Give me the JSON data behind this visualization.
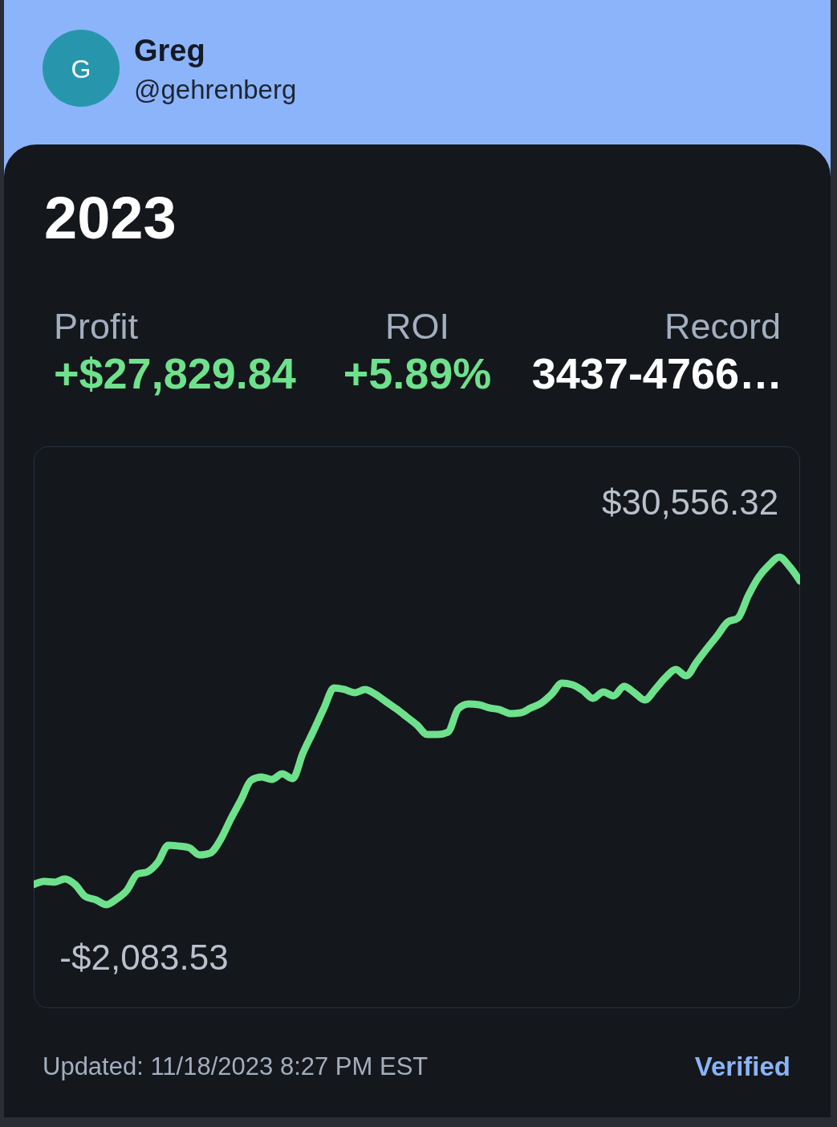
{
  "chart_data": [
    {
      "type": "other",
      "title": "Greg",
      "subtitle": "@gehrenberg",
      "annotations": [
        "G"
      ]
    },
    {
      "type": "other",
      "title": "2023",
      "annotations": [
        "Profit",
        "+$27,829.84",
        "ROI",
        "+5.89%",
        "Record",
        "3437-4766…"
      ]
    },
    {
      "type": "line",
      "categories": [
        null,
        null,
        null,
        null,
        null,
        null,
        null,
        null,
        null,
        null,
        null,
        null,
        null,
        null,
        null,
        null,
        null,
        null,
        null,
        null,
        null,
        null,
        null,
        null,
        null,
        null,
        null,
        null,
        null,
        null,
        null,
        null,
        null,
        null,
        null,
        null,
        null,
        null,
        null,
        null,
        null,
        null,
        null,
        null,
        null,
        null,
        null,
        null,
        null,
        null,
        null,
        null,
        null,
        null,
        null,
        null,
        null,
        null,
        null,
        null,
        null,
        null,
        null,
        null,
        null,
        null,
        null,
        null,
        null,
        null,
        null,
        null,
        null,
        null,
        null
      ],
      "values": [
        -200,
        100,
        30,
        330,
        -200,
        -1330,
        -1630,
        -2083.53,
        -1560,
        -730,
        780,
        1010,
        1910,
        3500,
        3420,
        3270,
        2590,
        2740,
        3950,
        5910,
        7720,
        9600,
        9900,
        9680,
        10200,
        9750,
        12160,
        14200,
        16310,
        18270,
        18120,
        17820,
        18120,
        17670,
        16990,
        16310,
        15560,
        14800,
        13900,
        13900,
        14120,
        16310,
        16760,
        16690,
        16390,
        16230,
        15860,
        15930,
        16390,
        16840,
        17670,
        18720,
        18570,
        18040,
        17290,
        17890,
        17520,
        18420,
        17820,
        17140,
        18120,
        19250,
        20000,
        19400,
        20680,
        21960,
        23170,
        24450,
        24830,
        26940,
        28670,
        29800,
        30556.32,
        29650,
        28300
      ],
      "value_labels": [
        null,
        null,
        null,
        null,
        null,
        null,
        null,
        "-$2,083.53",
        null,
        null,
        null,
        null,
        null,
        null,
        null,
        null,
        null,
        null,
        null,
        null,
        null,
        null,
        null,
        null,
        null,
        null,
        null,
        null,
        null,
        null,
        null,
        null,
        null,
        null,
        null,
        null,
        null,
        null,
        null,
        null,
        null,
        null,
        null,
        null,
        null,
        null,
        null,
        null,
        null,
        null,
        null,
        null,
        null,
        null,
        null,
        null,
        null,
        null,
        null,
        null,
        null,
        null,
        null,
        null,
        null,
        null,
        null,
        null,
        null,
        null,
        null,
        null,
        "$30,556.32",
        null,
        null
      ],
      "color": "#6ee18c",
      "tick_labels": false,
      "annotations": [
        "Updated: 11/18/2023 8:27 PM EST",
        "Verified"
      ]
    }
  ]
}
